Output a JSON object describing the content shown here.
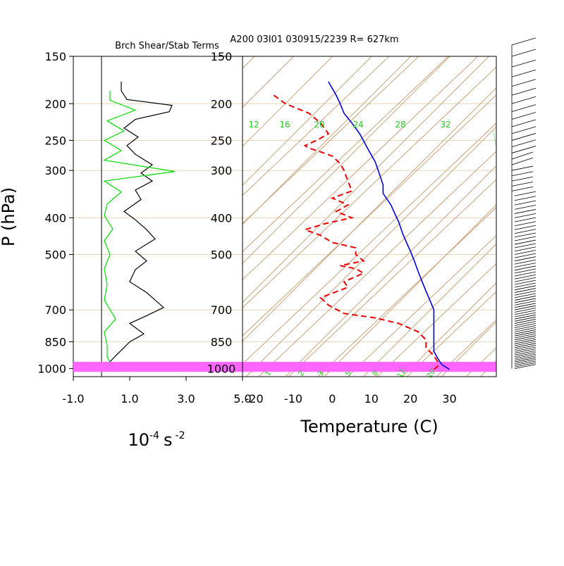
{
  "chart_data": [
    {
      "type": "line",
      "title": "Brch Shear/Stab Terms",
      "ylabel": "P (hPa)",
      "xlabel_base": "10",
      "xlabel_exp": "-4",
      "xlabel_unit": "s",
      "xlabel_unit_exp": "-2",
      "x_ticks": [
        "-1.0",
        "1.0",
        "3.0",
        "5.0"
      ],
      "x_tick_values": [
        -1,
        1,
        3,
        5
      ],
      "xlim": [
        -1,
        5
      ],
      "y_scale": "log",
      "ylim": [
        1050,
        150
      ],
      "y_ticks": [
        150,
        200,
        250,
        300,
        400,
        500,
        700,
        850,
        1000
      ],
      "y_tick_labels": [
        "150",
        "200",
        "250",
        "300",
        "400",
        "500",
        "700",
        "850",
        "1000"
      ],
      "series": [
        {
          "color": "#000000",
          "points": [
            [
              0.7,
              175
            ],
            [
              0.7,
              185
            ],
            [
              0.9,
              195
            ],
            [
              2.5,
              202
            ],
            [
              2.4,
              210
            ],
            [
              1.2,
              220
            ],
            [
              0.8,
              232
            ],
            [
              1.3,
              245
            ],
            [
              0.9,
              258
            ],
            [
              1.2,
              272
            ],
            [
              1.8,
              290
            ],
            [
              1.4,
              305
            ],
            [
              1.8,
              320
            ],
            [
              1.2,
              338
            ],
            [
              1.4,
              358
            ],
            [
              0.8,
              385
            ],
            [
              1.2,
              405
            ],
            [
              1.6,
              430
            ],
            [
              1.9,
              455
            ],
            [
              1.2,
              490
            ],
            [
              1.6,
              520
            ],
            [
              1.2,
              548
            ],
            [
              1.0,
              590
            ],
            [
              1.6,
              630
            ],
            [
              2.2,
              690
            ],
            [
              1.6,
              725
            ],
            [
              1.0,
              760
            ],
            [
              1.5,
              810
            ],
            [
              1.0,
              850
            ],
            [
              0.8,
              880
            ],
            [
              0.5,
              925
            ],
            [
              0.3,
              960
            ],
            [
              0.2,
              990
            ],
            [
              0.0,
              1005
            ]
          ]
        },
        {
          "color": "#00dd00",
          "points": [
            [
              0.3,
              185
            ],
            [
              0.3,
              196
            ],
            [
              1.2,
              208
            ],
            [
              0.2,
              222
            ],
            [
              0.8,
              236
            ],
            [
              0.1,
              250
            ],
            [
              0.7,
              266
            ],
            [
              0.1,
              282
            ],
            [
              2.6,
              302
            ],
            [
              0.1,
              320
            ],
            [
              0.7,
              342
            ],
            [
              0.2,
              368
            ],
            [
              0.1,
              395
            ],
            [
              0.4,
              428
            ],
            [
              0.1,
              460
            ],
            [
              0.3,
              500
            ],
            [
              0.1,
              545
            ],
            [
              0.2,
              600
            ],
            [
              0.1,
              660
            ],
            [
              0.5,
              740
            ],
            [
              0.1,
              800
            ],
            [
              0.2,
              870
            ],
            [
              0.2,
              930
            ],
            [
              0.4,
              1000
            ]
          ]
        }
      ]
    },
    {
      "type": "line",
      "title": "A200 03I01 030915/2239 R= 627km",
      "xlabel": "Temperature (C)",
      "x_ticks": [
        "-20",
        "-10",
        "0",
        "10",
        "20",
        "30"
      ],
      "x_tick_values": [
        -20,
        -10,
        0,
        10,
        20,
        30
      ],
      "xlim": [
        -23,
        42
      ],
      "y_scale": "log",
      "ylim": [
        1050,
        150
      ],
      "y_ticks": [
        150,
        200,
        250,
        300,
        400,
        500,
        700,
        850,
        1000
      ],
      "y_tick_labels": [
        "150",
        "200",
        "250",
        "300",
        "400",
        "500",
        "700",
        "850",
        "1000"
      ],
      "highlight_band_hpa": [
        960,
        1020
      ],
      "highlight_color": "#ff66ff",
      "mixing_ratio_labels": [
        "12",
        "16",
        "20",
        "24",
        "28",
        "32"
      ],
      "mixing_ratio_temps": [
        -20,
        -12,
        -3,
        7,
        18,
        29
      ],
      "mixing_ratio_bottom_labels": [
        "1",
        "2",
        "3",
        "5",
        "8",
        "12",
        "20"
      ],
      "series": [
        {
          "color": "#0000dd",
          "name": "",
          "points": [
            [
              -1,
              175
            ],
            [
              1,
              190
            ],
            [
              2,
              200
            ],
            [
              3,
              212
            ],
            [
              5,
              225
            ],
            [
              7,
              240
            ],
            [
              9,
              262
            ],
            [
              11,
              285
            ],
            [
              12,
              305
            ],
            [
              13,
              328
            ],
            [
              13,
              345
            ],
            [
              15,
              370
            ],
            [
              16,
              390
            ],
            [
              17,
              410
            ],
            [
              18,
              440
            ],
            [
              19,
              465
            ],
            [
              20,
              490
            ],
            [
              21,
              520
            ],
            [
              22,
              555
            ],
            [
              23,
              590
            ],
            [
              24,
              625
            ],
            [
              25,
              660
            ],
            [
              26,
              700
            ],
            [
              26,
              740
            ],
            [
              26,
              780
            ],
            [
              26,
              820
            ],
            [
              26,
              860
            ],
            [
              26,
              900
            ],
            [
              27,
              940
            ],
            [
              28,
              975
            ],
            [
              30,
              1005
            ]
          ]
        },
        {
          "color": "#ee0000",
          "name": "",
          "points": [
            [
              -15,
              190
            ],
            [
              -12,
              200
            ],
            [
              -6,
              212
            ],
            [
              -3,
              225
            ],
            [
              -1,
              240
            ],
            [
              -4,
              250
            ],
            [
              -7,
              258
            ],
            [
              -6,
              262
            ],
            [
              -3,
              268
            ],
            [
              0,
              275
            ],
            [
              2,
              288
            ],
            [
              3,
              300
            ],
            [
              4,
              320
            ],
            [
              5,
              340
            ],
            [
              0,
              355
            ],
            [
              4,
              370
            ],
            [
              1,
              385
            ],
            [
              5,
              400
            ],
            [
              -2,
              415
            ],
            [
              -7,
              430
            ],
            [
              -3,
              445
            ],
            [
              0,
              465
            ],
            [
              6,
              480
            ],
            [
              6,
              500
            ],
            [
              8,
              520
            ],
            [
              2,
              535
            ],
            [
              6,
              545
            ],
            [
              8,
              560
            ],
            [
              3,
              590
            ],
            [
              4,
              610
            ],
            [
              -3,
              650
            ],
            [
              -1,
              680
            ],
            [
              3,
              715
            ],
            [
              11,
              735
            ],
            [
              17,
              760
            ],
            [
              22,
              800
            ],
            [
              24,
              840
            ],
            [
              24,
              880
            ],
            [
              26,
              925
            ],
            [
              27,
              960
            ],
            [
              27,
              985
            ],
            [
              26,
              1005
            ]
          ]
        }
      ]
    }
  ]
}
